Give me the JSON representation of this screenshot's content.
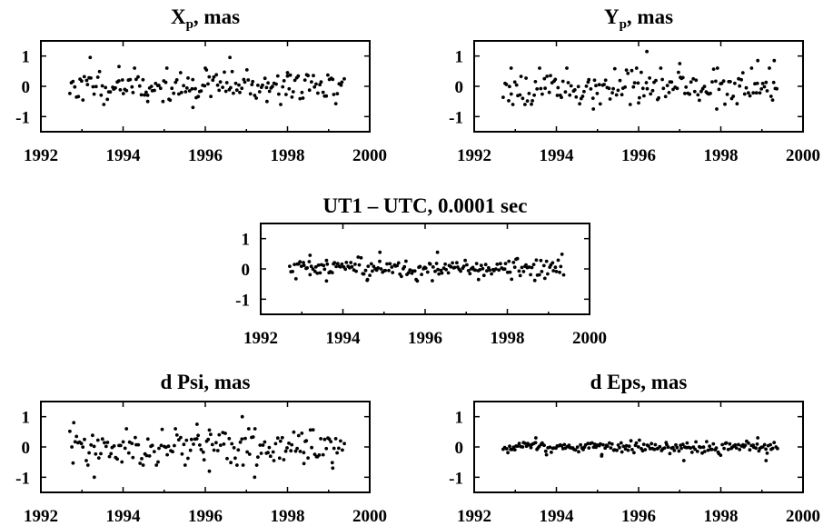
{
  "chart_data": [
    {
      "type": "scatter",
      "title": {
        "main": "X",
        "sub": "p",
        "rest": ",  mas"
      },
      "xlim": [
        1992,
        2000
      ],
      "ylim": [
        -1.5,
        1.5
      ],
      "xticks": [
        "1992",
        "1994",
        "1996",
        "1998",
        "2000"
      ],
      "yticks": [
        "1",
        "0",
        "-1"
      ],
      "x_range": [
        1992.7,
        1999.4
      ],
      "n_points": 170,
      "spread": 0.25,
      "seed": 11,
      "extremes": [
        [
          1993.2,
          0.95
        ],
        [
          1996.6,
          0.95
        ],
        [
          1995.7,
          -0.7
        ],
        [
          1993.9,
          0.65
        ],
        [
          1996.0,
          0.6
        ],
        [
          1998.0,
          0.45
        ],
        [
          1994.6,
          -0.5
        ],
        [
          1997.5,
          -0.5
        ]
      ]
    },
    {
      "type": "scatter",
      "title": {
        "main": "Y",
        "sub": "p",
        "rest": ",  mas"
      },
      "xlim": [
        1992,
        2000
      ],
      "ylim": [
        -1.5,
        1.5
      ],
      "xticks": [
        "1992",
        "1994",
        "1996",
        "1998",
        "2000"
      ],
      "yticks": [
        "1",
        "0",
        "-1"
      ],
      "x_range": [
        1992.7,
        1999.4
      ],
      "n_points": 170,
      "spread": 0.28,
      "seed": 23,
      "extremes": [
        [
          1996.2,
          1.15
        ],
        [
          1992.9,
          0.6
        ],
        [
          1997.0,
          0.75
        ],
        [
          1998.9,
          0.85
        ],
        [
          1999.3,
          0.85
        ],
        [
          1994.9,
          -0.75
        ],
        [
          1997.9,
          -0.75
        ],
        [
          1996.0,
          -0.55
        ]
      ]
    },
    {
      "type": "scatter",
      "title": {
        "main": "UT1 – UTC,  0.0001 sec",
        "sub": "",
        "rest": ""
      },
      "xlim": [
        1992,
        2000
      ],
      "ylim": [
        -1.5,
        1.5
      ],
      "xticks": [
        "1992",
        "1994",
        "1996",
        "1998",
        "2000"
      ],
      "yticks": [
        "1",
        "0",
        "-1"
      ],
      "x_range": [
        1992.7,
        1999.4
      ],
      "n_points": 190,
      "spread": 0.16,
      "seed": 37,
      "extremes": [
        [
          1994.9,
          0.55
        ],
        [
          1996.3,
          0.55
        ],
        [
          1993.2,
          0.45
        ],
        [
          1997.3,
          -0.35
        ],
        [
          1994.6,
          -0.35
        ],
        [
          1993.6,
          -0.4
        ]
      ]
    },
    {
      "type": "scatter",
      "title": {
        "main": "d Psi,  mas",
        "sub": "",
        "rest": ""
      },
      "xlim": [
        1992,
        2000
      ],
      "ylim": [
        -1.5,
        1.5
      ],
      "xticks": [
        "1992",
        "1994",
        "1996",
        "1998",
        "2000"
      ],
      "yticks": [
        "1",
        "0",
        "-1"
      ],
      "x_range": [
        1992.7,
        1999.4
      ],
      "n_points": 170,
      "spread": 0.3,
      "seed": 53,
      "extremes": [
        [
          1992.8,
          0.8
        ],
        [
          1996.9,
          1.0
        ],
        [
          1993.3,
          -1.0
        ],
        [
          1997.2,
          -1.0
        ],
        [
          1996.1,
          -0.8
        ],
        [
          1995.8,
          0.75
        ],
        [
          1999.1,
          -0.7
        ],
        [
          1998.4,
          -0.55
        ]
      ]
    },
    {
      "type": "scatter",
      "title": {
        "main": "d Eps,  mas",
        "sub": "",
        "rest": ""
      },
      "xlim": [
        1992,
        2000
      ],
      "ylim": [
        -1.5,
        1.5
      ],
      "xticks": [
        "1992",
        "1994",
        "1996",
        "1998",
        "2000"
      ],
      "yticks": [
        "1",
        "0",
        "-1"
      ],
      "x_range": [
        1992.7,
        1999.4
      ],
      "n_points": 190,
      "spread": 0.1,
      "seed": 71,
      "extremes": [
        [
          1997.1,
          -0.45
        ],
        [
          1999.1,
          -0.45
        ],
        [
          1993.5,
          0.3
        ],
        [
          1998.9,
          0.3
        ],
        [
          1995.1,
          -0.3
        ]
      ]
    }
  ]
}
